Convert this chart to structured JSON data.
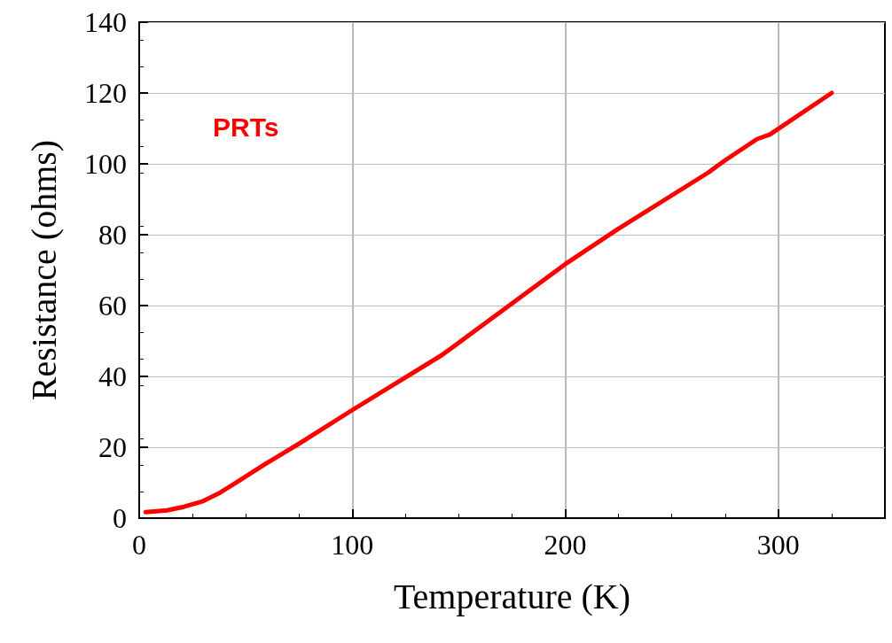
{
  "chart_data": {
    "type": "line",
    "xlabel": "Temperature (K)",
    "ylabel": "Resistance (ohms)",
    "annotations": [
      "PRTs"
    ],
    "x": [
      3,
      13,
      21,
      30,
      38,
      46,
      59,
      75,
      100,
      142,
      200,
      225,
      267,
      275,
      290,
      296,
      325
    ],
    "series": [
      {
        "color": "#ff0000",
        "values": [
          1.7,
          2.2,
          3.2,
          4.8,
          7.2,
          10.2,
          15.2,
          21,
          30.5,
          46,
          71.7,
          81.7,
          97.5,
          101,
          107,
          108.3,
          120
        ]
      }
    ],
    "xlim": [
      0,
      350
    ],
    "xticks": [
      0,
      100,
      200,
      300
    ],
    "ylim": [
      0,
      140
    ],
    "yticks": [
      0,
      20,
      40,
      60,
      80,
      100,
      120,
      140
    ],
    "grid": true,
    "marker": "none",
    "line_style": "solid"
  }
}
